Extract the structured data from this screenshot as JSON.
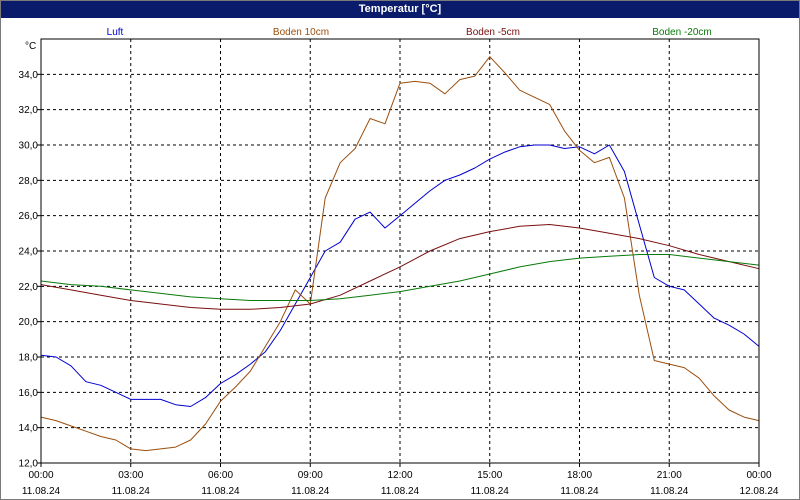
{
  "window": {
    "title": "Temperatur [°C]"
  },
  "chart_data": {
    "type": "line",
    "title": "Temperatur [°C]",
    "ylabel": "°C",
    "xlabel": "",
    "ylim": [
      12,
      36
    ],
    "yticks": [
      "12,0",
      "14,0",
      "16,0",
      "18,0",
      "20,0",
      "22,0",
      "24,0",
      "26,0",
      "28,0",
      "30,0",
      "32,0",
      "34,0"
    ],
    "xlim": [
      0,
      24
    ],
    "xticks": [
      {
        "time": "00:00",
        "date": "11.08.24"
      },
      {
        "time": "03:00",
        "date": "11.08.24"
      },
      {
        "time": "06:00",
        "date": "11.08.24"
      },
      {
        "time": "09:00",
        "date": "11.08.24"
      },
      {
        "time": "12:00",
        "date": "11.08.24"
      },
      {
        "time": "15:00",
        "date": "11.08.24"
      },
      {
        "time": "18:00",
        "date": "11.08.24"
      },
      {
        "time": "21:00",
        "date": "11.08.24"
      },
      {
        "time": "00:00",
        "date": "12.08.24"
      }
    ],
    "grid": true,
    "legend_position": "top",
    "series": [
      {
        "name": "Luft",
        "color": "#0000d0",
        "x": [
          0,
          0.5,
          1,
          1.5,
          2,
          2.5,
          3,
          3.5,
          4,
          4.5,
          5,
          5.5,
          6,
          6.5,
          7,
          7.5,
          8,
          8.5,
          9,
          9.5,
          10,
          10.5,
          11,
          11.5,
          12,
          12.5,
          13,
          13.5,
          14,
          14.5,
          15,
          15.5,
          16,
          16.5,
          17,
          17.5,
          18,
          18.5,
          19,
          19.5,
          20,
          20.5,
          21,
          21.5,
          22,
          22.5,
          23,
          23.5,
          24
        ],
        "y": [
          18.1,
          18.0,
          17.5,
          16.6,
          16.4,
          16.0,
          15.6,
          15.6,
          15.6,
          15.3,
          15.2,
          15.7,
          16.5,
          17.0,
          17.6,
          18.3,
          19.5,
          21.0,
          22.5,
          24.0,
          24.5,
          25.8,
          26.2,
          25.3,
          26.0,
          26.7,
          27.4,
          28.0,
          28.3,
          28.7,
          29.2,
          29.6,
          29.9,
          30.0,
          30.0,
          29.8,
          29.9,
          29.5,
          30.0,
          28.5,
          25.5,
          22.5,
          22.0,
          21.8,
          21.0,
          20.2,
          19.8,
          19.3,
          18.6
        ]
      },
      {
        "name": "Boden 10cm",
        "color": "#9b4f0f",
        "x": [
          0,
          0.5,
          1,
          1.5,
          2,
          2.5,
          3,
          3.5,
          4,
          4.5,
          5,
          5.5,
          6,
          6.5,
          7,
          7.5,
          8,
          8.5,
          9,
          9.5,
          10,
          10.5,
          11,
          11.5,
          12,
          12.5,
          13,
          13.5,
          14,
          14.5,
          15,
          15.5,
          16,
          16.5,
          17,
          17.5,
          18,
          18.5,
          19,
          19.5,
          20,
          20.5,
          21,
          21.5,
          22,
          22.5,
          23,
          23.5,
          24
        ],
        "y": [
          14.6,
          14.4,
          14.1,
          13.8,
          13.5,
          13.3,
          12.8,
          12.7,
          12.8,
          12.9,
          13.3,
          14.2,
          15.5,
          16.3,
          17.2,
          18.6,
          20.0,
          21.8,
          21.0,
          27.0,
          29.0,
          29.8,
          31.5,
          31.2,
          33.5,
          33.6,
          33.5,
          32.9,
          33.7,
          33.9,
          35.0,
          34.1,
          33.1,
          32.7,
          32.3,
          30.8,
          29.7,
          29.0,
          29.3,
          27.0,
          21.5,
          17.8,
          17.6,
          17.4,
          16.8,
          15.8,
          15.0,
          14.6,
          14.4
        ]
      },
      {
        "name": "Boden -5cm",
        "color": "#7a0f0f",
        "x": [
          0,
          1,
          2,
          3,
          4,
          5,
          6,
          7,
          8,
          9,
          10,
          11,
          12,
          13,
          14,
          15,
          16,
          17,
          18,
          19,
          20,
          21,
          22,
          23,
          24
        ],
        "y": [
          22.1,
          21.8,
          21.5,
          21.2,
          21.0,
          20.8,
          20.7,
          20.7,
          20.8,
          21.0,
          21.5,
          22.3,
          23.1,
          24.0,
          24.7,
          25.1,
          25.4,
          25.5,
          25.3,
          25.0,
          24.7,
          24.3,
          23.8,
          23.4,
          23.0
        ]
      },
      {
        "name": "Boden -20cm",
        "color": "#0a7a0a",
        "x": [
          0,
          1,
          2,
          3,
          4,
          5,
          6,
          7,
          8,
          9,
          10,
          11,
          12,
          13,
          14,
          15,
          16,
          17,
          18,
          19,
          20,
          21,
          22,
          23,
          24
        ],
        "y": [
          22.3,
          22.1,
          22.0,
          21.8,
          21.6,
          21.4,
          21.3,
          21.2,
          21.2,
          21.2,
          21.3,
          21.5,
          21.7,
          22.0,
          22.3,
          22.7,
          23.1,
          23.4,
          23.6,
          23.7,
          23.8,
          23.8,
          23.6,
          23.4,
          23.2
        ]
      }
    ]
  }
}
